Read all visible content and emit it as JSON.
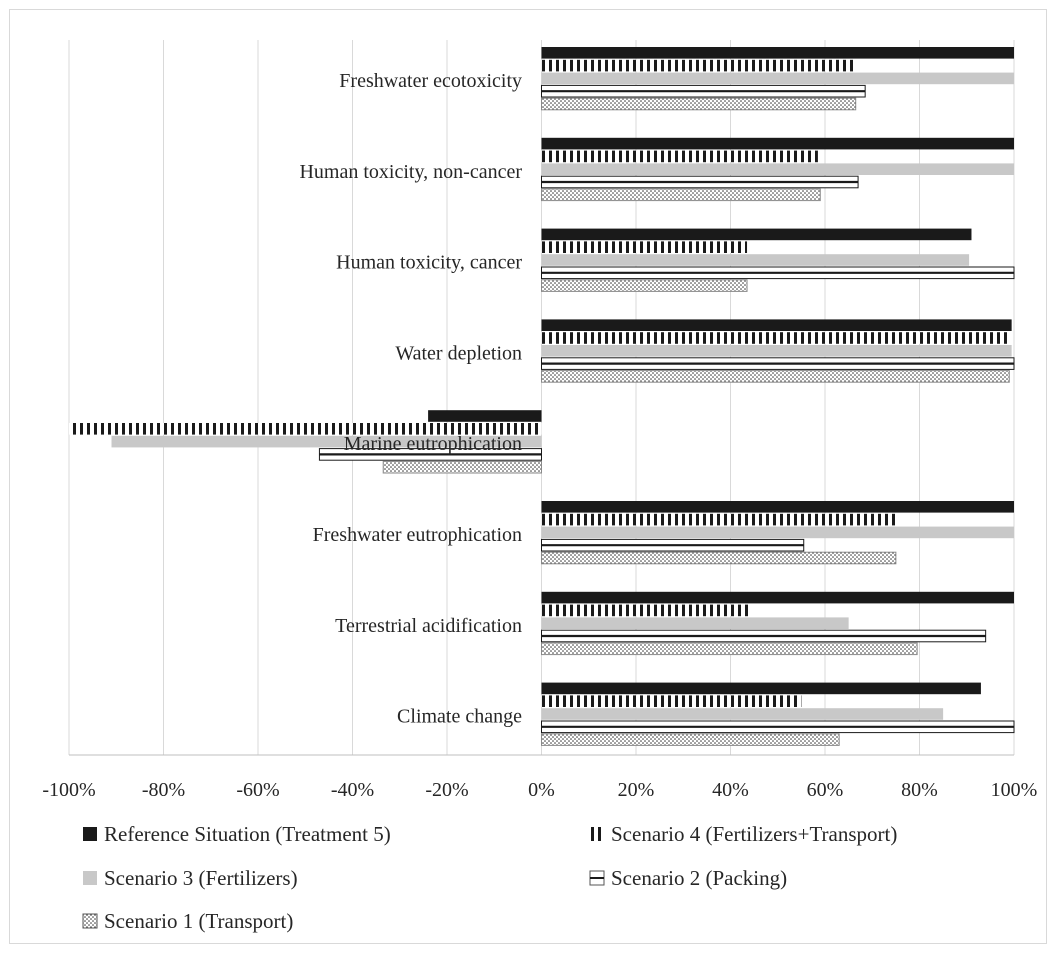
{
  "chart_data": {
    "type": "bar",
    "orientation": "horizontal",
    "categories": [
      "Freshwater ecotoxicity",
      "Human toxicity, non-cancer",
      "Human toxicity, cancer",
      "Water depletion",
      "Marine eutrophication",
      "Freshwater eutrophication",
      "Terrestrial acidification",
      "Climate change"
    ],
    "series": [
      {
        "name": "Reference Situation (Treatment 5)",
        "pattern": "solid-dark",
        "values": [
          100,
          100,
          91,
          99.5,
          -24,
          100,
          100,
          93
        ]
      },
      {
        "name": "Scenario 4 (Fertilizers+Transport)",
        "pattern": "vertical-stripes",
        "values": [
          66.5,
          58.5,
          43.5,
          99,
          -100,
          75,
          44.5,
          55
        ]
      },
      {
        "name": "Scenario 3 (Fertilizers)",
        "pattern": "solid-light",
        "values": [
          100,
          100,
          90.5,
          99.5,
          -91,
          100,
          65,
          85
        ]
      },
      {
        "name": "Scenario 2 (Packing)",
        "pattern": "horizontal-lines",
        "values": [
          68.5,
          67,
          100,
          100,
          -47,
          55.5,
          94,
          100
        ]
      },
      {
        "name": "Scenario 1 (Transport)",
        "pattern": "dots",
        "values": [
          66.5,
          59,
          43.5,
          99,
          -33.5,
          75,
          79.5,
          63
        ]
      }
    ],
    "x_ticks": [
      "-100%",
      "-80%",
      "-60%",
      "-40%",
      "-20%",
      "0%",
      "20%",
      "40%",
      "60%",
      "80%",
      "100%"
    ],
    "xlim": [
      -100,
      100
    ],
    "grid": true,
    "legend_position": "bottom",
    "colors": {
      "dark": "#1a1a1a",
      "light": "#c8c8c8",
      "grid": "#d9d9d9",
      "axis": "#bfbfbf"
    }
  }
}
